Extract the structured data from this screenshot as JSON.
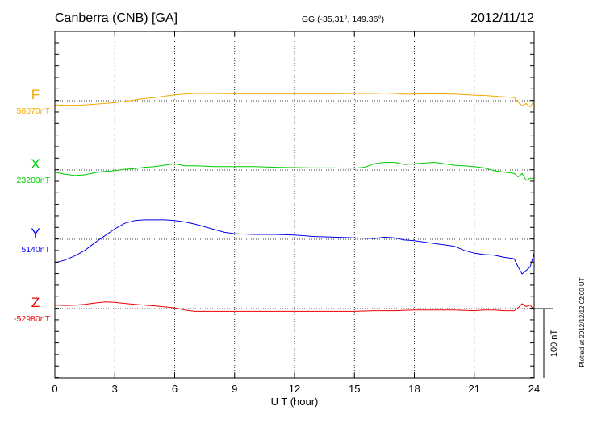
{
  "header": {
    "station": "Canberra (CNB)  [GA]",
    "coords": "GG (-35.31°, 149.36°)",
    "date": "2012/11/12"
  },
  "footer": {
    "plotted_note": "Plotted at 2012/12/12 02:00 UT"
  },
  "scale_bar": {
    "label": "100 nT",
    "nT": 100
  },
  "colors": {
    "F": "#f5a800",
    "X": "#00cc00",
    "Y": "#0000ee",
    "Z": "#ee0000",
    "grid": "#000000",
    "axis": "#000000"
  },
  "chart_data": {
    "type": "line",
    "title": "",
    "xlabel": "U T (hour)",
    "ylabel": "",
    "xlim": [
      0,
      24
    ],
    "x_ticks": [
      0,
      3,
      6,
      9,
      12,
      15,
      18,
      21,
      24
    ],
    "x_tick_labels": [
      "0",
      "3",
      "6",
      "9",
      "12",
      "15",
      "18",
      "21",
      "24"
    ],
    "grid": true,
    "series": [
      {
        "name": "F",
        "baseline_label": "58070nT",
        "color": "#f5a800",
        "x": [
          0,
          0.5,
          1,
          1.5,
          2,
          2.5,
          3,
          3.5,
          4,
          4.5,
          5,
          5.5,
          6,
          6.5,
          7,
          7.5,
          8,
          9,
          10,
          11,
          12,
          13,
          14,
          15,
          16,
          16.5,
          17,
          17.5,
          18,
          19,
          20,
          21,
          21.5,
          22,
          22.5,
          23,
          23.2,
          23.4,
          23.6,
          23.8,
          24
        ],
        "values": [
          -6,
          -6.5,
          -6.5,
          -6,
          -5,
          -4,
          -2.5,
          -1,
          1,
          3,
          4.5,
          6.5,
          8.5,
          9.5,
          10.5,
          10.5,
          10.5,
          10,
          10,
          10,
          10,
          10,
          10,
          10.5,
          10.5,
          11,
          10.5,
          9.5,
          9.5,
          10,
          9.5,
          8,
          7.5,
          6.5,
          5.5,
          4.5,
          -2,
          -7,
          -4,
          -9,
          0
        ]
      },
      {
        "name": "X",
        "baseline_label": "23200nT",
        "color": "#00cc00",
        "x": [
          0,
          0.5,
          1,
          1.5,
          2,
          2.5,
          3,
          3.5,
          4,
          4.5,
          5,
          5.5,
          6,
          6.5,
          7,
          8,
          9,
          10,
          11,
          12,
          13,
          14,
          15,
          15.5,
          16,
          16.5,
          17,
          17.5,
          18,
          19,
          20,
          21,
          21.5,
          22,
          22.5,
          23,
          23.2,
          23.4,
          23.6,
          23.8,
          24
        ],
        "values": [
          -3,
          -6,
          -8,
          -7,
          -4,
          -2,
          -1,
          1,
          2,
          4,
          5,
          7,
          9,
          6,
          6,
          5,
          5,
          5,
          4,
          3.5,
          3,
          3,
          2.5,
          4,
          9,
          11,
          11,
          8,
          9,
          11,
          7,
          5,
          3,
          -1,
          -3,
          -5,
          -10,
          -5,
          -15,
          -12,
          -12
        ]
      },
      {
        "name": "Y",
        "baseline_label": "5140nT",
        "color": "#0000ee",
        "x": [
          0,
          0.5,
          1,
          1.5,
          2,
          2.5,
          3,
          3.5,
          4,
          4.5,
          5,
          5.5,
          6,
          6.5,
          7,
          7.5,
          8,
          8.5,
          9,
          10,
          11,
          12,
          13,
          14,
          15,
          16,
          16.5,
          17,
          17.5,
          18,
          19,
          20,
          20.5,
          21,
          21.5,
          22,
          22.5,
          23,
          23.2,
          23.4,
          23.6,
          23.8,
          24
        ],
        "values": [
          -34,
          -30,
          -24,
          -16,
          -5,
          5,
          15,
          23,
          27,
          28,
          28,
          28,
          27,
          25,
          22,
          18,
          14,
          10,
          8,
          7,
          7,
          6,
          4,
          3,
          2,
          1,
          3,
          2,
          -1,
          -2,
          -6,
          -10,
          -16,
          -20,
          -22,
          -23,
          -26,
          -28,
          -40,
          -50,
          -45,
          -40,
          -20
        ]
      },
      {
        "name": "Z",
        "baseline_label": "-52980nT",
        "color": "#ee0000",
        "x": [
          0,
          0.5,
          1,
          1.5,
          2,
          2.5,
          3,
          3.5,
          4,
          4.5,
          5,
          5.5,
          6,
          6.5,
          7,
          8,
          9,
          10,
          11,
          12,
          13,
          14,
          15,
          16,
          17,
          18,
          19,
          20,
          21,
          21.5,
          22,
          22.5,
          23,
          23.2,
          23.4,
          23.6,
          23.8,
          24
        ],
        "values": [
          5,
          4.5,
          5,
          6,
          8,
          9.5,
          9,
          7.5,
          6,
          5,
          4,
          2.5,
          1,
          -2,
          -4,
          -4,
          -4,
          -4,
          -4,
          -4,
          -4,
          -4,
          -4,
          -3,
          -3,
          -2,
          -2,
          -2,
          -3,
          -2,
          -2,
          -3,
          -3,
          1,
          7,
          3,
          5,
          -2
        ]
      }
    ]
  }
}
